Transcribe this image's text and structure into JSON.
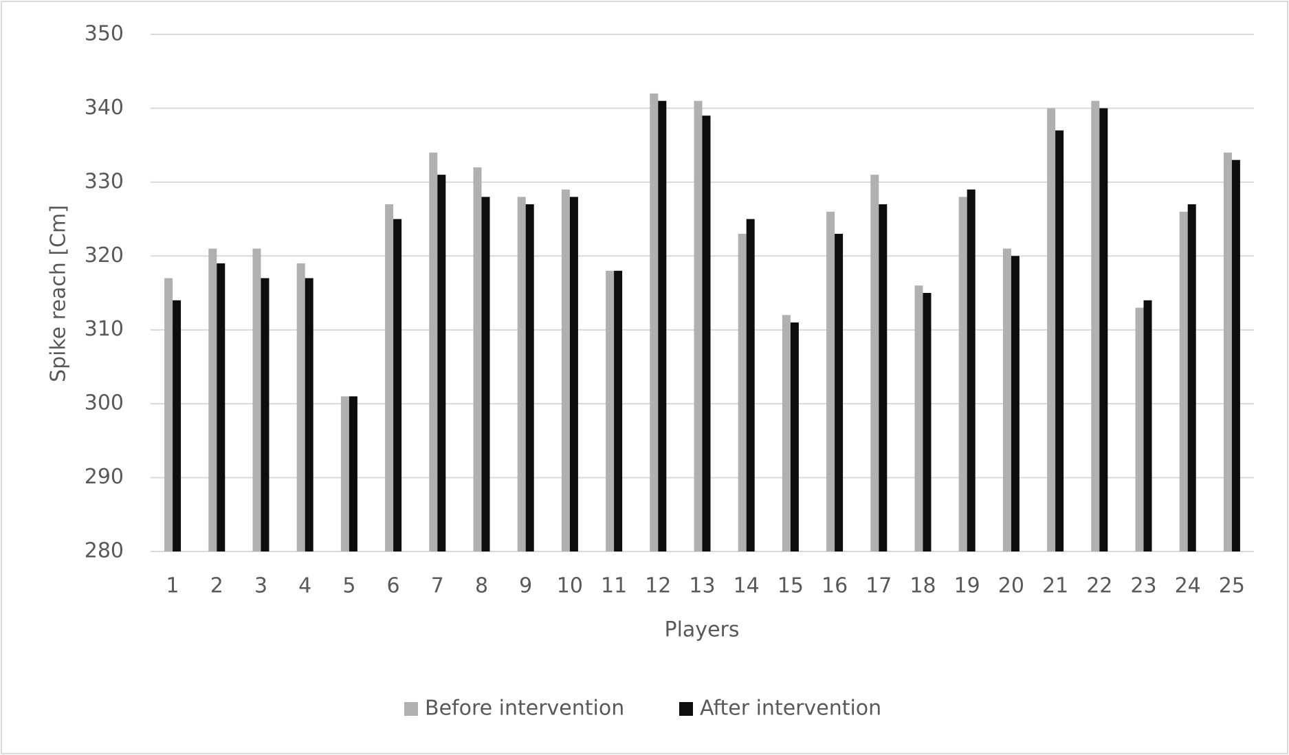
{
  "chart_data": {
    "type": "bar",
    "x_label": "Players",
    "y_label": "Spike reach [Cm]",
    "categories": [
      "1",
      "2",
      "3",
      "4",
      "5",
      "6",
      "7",
      "8",
      "9",
      "10",
      "11",
      "12",
      "13",
      "14",
      "15",
      "16",
      "17",
      "18",
      "19",
      "20",
      "21",
      "22",
      "23",
      "24",
      "25"
    ],
    "series": [
      {
        "name": "Before intervention",
        "color": "#b0b0b0",
        "values": [
          317,
          321,
          321,
          319,
          301,
          327,
          334,
          332,
          328,
          329,
          318,
          342,
          341,
          323,
          312,
          326,
          331,
          316,
          328,
          321,
          340,
          341,
          313,
          326,
          334
        ]
      },
      {
        "name": "After intervention",
        "color": "#0d0d0d",
        "values": [
          314,
          319,
          317,
          317,
          301,
          325,
          331,
          328,
          327,
          328,
          318,
          341,
          339,
          325,
          311,
          323,
          327,
          315,
          329,
          320,
          337,
          340,
          314,
          327,
          333
        ]
      }
    ],
    "ylim": [
      280,
      350
    ],
    "yticks": [
      280,
      290,
      300,
      310,
      320,
      330,
      340,
      350
    ],
    "grid": true,
    "legend": "bottom"
  }
}
